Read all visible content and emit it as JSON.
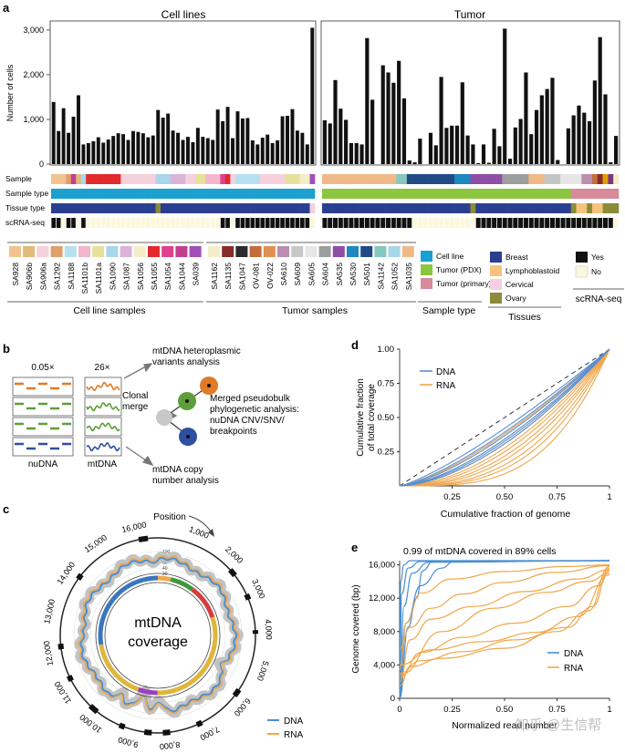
{
  "panels": {
    "a": "a",
    "b": "b",
    "c": "c",
    "d": "d",
    "e": "e"
  },
  "panel_a": {
    "cell_lines_title": "Cell lines",
    "tumor_title": "Tumor",
    "ylabel": "Number of cells",
    "yticks": [
      "0",
      "1,000",
      "2,000",
      "3,000"
    ],
    "row_labels": [
      "Sample",
      "Sample type",
      "Tissue type",
      "scRNA-seq"
    ],
    "cell_line_values": [
      1390,
      740,
      1250,
      700,
      1060,
      1540,
      440,
      470,
      510,
      600,
      480,
      550,
      630,
      690,
      670,
      540,
      740,
      720,
      690,
      600,
      640,
      1210,
      1040,
      1130,
      750,
      700,
      540,
      610,
      490,
      810,
      610,
      580,
      540,
      1220,
      960,
      1280,
      580,
      1180,
      1020,
      1030,
      530,
      440,
      590,
      660,
      470,
      530,
      1070,
      1080,
      1230,
      750,
      700,
      440,
      3050
    ],
    "tumor_values": [
      980,
      910,
      1880,
      1240,
      990,
      470,
      470,
      440,
      2820,
      1440,
      0,
      2210,
      2050,
      1820,
      2310,
      1470,
      80,
      40,
      570,
      0,
      700,
      420,
      1950,
      810,
      860,
      860,
      1830,
      640,
      440,
      20,
      440,
      30,
      790,
      400,
      3030,
      120,
      820,
      1010,
      2050,
      670,
      1210,
      1540,
      1680,
      1930,
      90,
      0,
      800,
      1090,
      1310,
      1150,
      960,
      1870,
      2840,
      1560,
      40,
      630
    ],
    "cell_line_colors": [
      "#f2c391",
      "#f2c391",
      "#f2c391",
      "#dfa06a",
      "#c2408f",
      "#e0bb7a",
      "#a8d6ea",
      "#e32a2d",
      "#e32a2d",
      "#e32a2d",
      "#e32a2d",
      "#e32a2d",
      "#e32a2d",
      "#e32a2d",
      "#f7d0dd",
      "#f7d0dd",
      "#f7d0dd",
      "#f7d0dd",
      "#f7d0dd",
      "#f7d0dd",
      "#f7d0dd",
      "#a8d6ea",
      "#a8d6ea",
      "#a8d6ea",
      "#dcb3d6",
      "#dcb3d6",
      "#dcb3d6",
      "#f7d0dd",
      "#f7d0dd",
      "#e6e09b",
      "#e6e09b",
      "#f4b6cc",
      "#f4b6cc",
      "#f4b6cc",
      "#e0408f",
      "#e32a2d",
      "#f7d0dd",
      "#b4e0f2",
      "#b4e0f2",
      "#b4e0f2",
      "#b4e0f2",
      "#b4e0f2",
      "#f7d0dd",
      "#f7d0dd",
      "#f7d0dd",
      "#f7d0dd",
      "#f7d0dd",
      "#e6e09b",
      "#e6e09b",
      "#e6e09b",
      "#f3eec8",
      "#f3eec8",
      "#a14db8"
    ],
    "tumor_colors": [
      "#f1b988",
      "#f1b988",
      "#f1b988",
      "#f1b988",
      "#f1b988",
      "#f1b988",
      "#f1b988",
      "#f1b988",
      "#f1b988",
      "#f1b988",
      "#f1b988",
      "#f1b988",
      "#f1b988",
      "#f1b988",
      "#86c7c0",
      "#86c7c0",
      "#224a86",
      "#224a86",
      "#224a86",
      "#224a86",
      "#224a86",
      "#224a86",
      "#224a86",
      "#224a86",
      "#224a86",
      "#1e88c0",
      "#1e88c0",
      "#1e88c0",
      "#8f4ea6",
      "#8f4ea6",
      "#8f4ea6",
      "#8f4ea6",
      "#8f4ea6",
      "#8f4ea6",
      "#9e9e9e",
      "#9e9e9e",
      "#9e9e9e",
      "#9e9e9e",
      "#9e9e9e",
      "#f1b988",
      "#f1b988",
      "#f1b988",
      "#c5c5c5",
      "#c5c5c5",
      "#c5c5c5",
      "#e6e6e6",
      "#e6e6e6",
      "#e6e6e6",
      "#e6e6e6",
      "#b98eae",
      "#b98eae",
      "#c26d3b",
      "#8b2a2a",
      "#e0a000",
      "#7a3a7a",
      "#f3eec8"
    ],
    "cell_line_type": {
      "color": "#1ba1cf"
    },
    "tumor_type": {
      "pdx_color": "#8cc63f",
      "primary_color": "#d68a9a",
      "pdx_count": 47
    },
    "cell_line_tissue": {
      "breast": "#2a3f8f",
      "ovary": "#8b8b3a"
    },
    "tumor_tissue": {
      "breast": "#2a3f8f",
      "lympho": "#f6c37d",
      "ovary": "#8b8b3a"
    },
    "cell_line_scrna": [
      1,
      1,
      0,
      1,
      1,
      0,
      1,
      0,
      0,
      0,
      0,
      0,
      0,
      0,
      0,
      0,
      0,
      0,
      0,
      0,
      0,
      0,
      0,
      0,
      0,
      0,
      0,
      0,
      0,
      0,
      0,
      0,
      0,
      0,
      1,
      1,
      0,
      1,
      1,
      1,
      1,
      1,
      1,
      1,
      1,
      1,
      1,
      1,
      1,
      1,
      1,
      1,
      0
    ],
    "tumor_scrna": [
      1,
      1,
      1,
      1,
      1,
      1,
      1,
      1,
      1,
      1,
      1,
      1,
      1,
      1,
      1,
      1,
      1,
      0,
      0,
      0,
      0,
      0,
      0,
      0,
      0,
      0,
      0,
      0,
      0,
      1,
      1,
      1,
      1,
      1,
      1,
      1,
      1,
      1,
      1,
      1,
      1,
      1,
      1,
      1,
      1,
      1,
      1,
      1,
      1,
      1,
      1,
      1,
      1,
      1,
      1,
      0
    ],
    "legend_cell_line_samples": {
      "labels": [
        "SA928",
        "SA906b",
        "SA906a",
        "SA1292",
        "SA1188",
        "SA1101b",
        "SA1101a",
        "SA1090",
        "SA1087",
        "SA1056",
        "SA1055",
        "SA1054",
        "SA1044",
        "SA039"
      ],
      "colors": [
        "#f2c391",
        "#e0bb7a",
        "#f7d0dd",
        "#dfa06a",
        "#b4e0f2",
        "#f4b6cc",
        "#e6e09b",
        "#a8d6ea",
        "#dcb3d6",
        "#f3eec8",
        "#e32a2d",
        "#e0408f",
        "#c2408f",
        "#a14db8"
      ],
      "title": "Cell line samples"
    },
    "legend_tumor_samples": {
      "labels": [
        "SA1162",
        "SA1135",
        "SA1047",
        "OV-081",
        "OV-022",
        "SA610",
        "SA609",
        "SA605",
        "SA604",
        "SA535",
        "SA530",
        "SA501",
        "SA1142",
        "SA1052",
        "SA1035"
      ],
      "colors": [
        "#f3eec8",
        "#8b2a2a",
        "#2b2b2b",
        "#c26d3b",
        "#e09050",
        "#b98eae",
        "#c8c8c8",
        "#e6e6e6",
        "#9e9e9e",
        "#8f4ea6",
        "#1e88c0",
        "#224a86",
        "#86c7c0",
        "#a8d6ea",
        "#f1b988"
      ],
      "title": "Tumor samples"
    },
    "legend_sample_type": {
      "labels": [
        "Cell line",
        "Tumor (PDX)",
        "Tumor (primary)"
      ],
      "colors": [
        "#1ba1cf",
        "#8cc63f",
        "#d68a9a"
      ],
      "title": "Sample type"
    },
    "legend_tissues": {
      "labels": [
        "Breast",
        "Lymphoblastoid",
        "Cervical",
        "Ovary"
      ],
      "colors": [
        "#2a3f8f",
        "#f6c37d",
        "#f7d0dd",
        "#8b8b3a"
      ],
      "title": "Tissues"
    },
    "legend_scrna": {
      "labels": [
        "Yes",
        "No"
      ],
      "colors": [
        "#111111",
        "#fbf7dc"
      ],
      "title": "scRNA-seq"
    }
  },
  "panel_b": {
    "depth_nu": "0.05×",
    "depth_mt": "26×",
    "nu_label": "nuDNA",
    "mt_label": "mtDNA",
    "clonal_merge": "Clonal\nmerge",
    "out1": "mtDNA heteroplasmic\nvariants analysis",
    "out2": "Merged pseudobulk\nphylogenetic analysis:\nnuDNA CNV/SNV/\nbreakpoints",
    "out3": "mtDNA copy\nnumber analysis"
  },
  "panel_c": {
    "title": "mtDNA\ncoverage",
    "position_label": "Position",
    "position_ticks": [
      "1,000",
      "2,000",
      "3,000",
      "4,000",
      "5,000",
      "6,000",
      "7,000",
      "8,000",
      "9,000",
      "10,000",
      "11,000",
      "12,000",
      "13,000",
      "14,000",
      "15,000",
      "16,000"
    ],
    "scale_ticks": [
      "100",
      "80",
      "60",
      "40",
      "20"
    ],
    "legend": [
      {
        "label": "DNA",
        "color": "#4a8fd0"
      },
      {
        "label": "RNA",
        "color": "#f0a64a"
      }
    ]
  },
  "chart_data": [
    {
      "type": "bar",
      "id": "a",
      "title": "Cell lines",
      "ylabel": "Number of cells",
      "ylim": [
        0,
        3100
      ],
      "note": "per-sample bars"
    },
    {
      "type": "line",
      "id": "d",
      "xlabel": "Cumulative fraction of genome",
      "ylabel": "Cumulative fraction\nof total coverage",
      "xlim": [
        0,
        1
      ],
      "ylim": [
        0,
        1
      ],
      "xticks": [
        "0.25",
        "0.50",
        "0.75",
        "1"
      ],
      "yticks": [
        "0.25",
        "0.50",
        "0.75",
        "1.00"
      ],
      "series": [
        {
          "name": "DNA",
          "color": "#5b8fd0",
          "gammas": [
            1.25,
            1.35,
            1.45,
            1.55,
            1.62,
            1.7
          ]
        },
        {
          "name": "RNA",
          "color": "#f0a64a",
          "gammas": [
            1.4,
            1.55,
            1.7,
            1.85,
            2.0,
            2.2,
            2.4,
            2.7,
            3.0,
            3.5
          ]
        }
      ],
      "legend": [
        "DNA",
        "RNA"
      ]
    },
    {
      "type": "line",
      "id": "e",
      "title": "0.99 of mtDNA covered in 89% cells",
      "xlabel": "Normalized read number",
      "ylabel": "Genome covered (bp)",
      "xlim": [
        0,
        1
      ],
      "ylim": [
        0,
        16500
      ],
      "xticks": [
        "0",
        "0.25",
        "0.50",
        "0.75",
        "1"
      ],
      "yticks": [
        "0",
        "4,000",
        "8,000",
        "12,000",
        "16,000"
      ],
      "series": [
        {
          "name": "DNA",
          "color": "#4a8fd0",
          "curves": [
            [
              [
                0,
                0
              ],
              [
                0.005,
                14000
              ],
              [
                0.02,
                16000
              ],
              [
                0.05,
                16500
              ],
              [
                1,
                16500
              ]
            ],
            [
              [
                0,
                0
              ],
              [
                0.01,
                12500
              ],
              [
                0.04,
                15600
              ],
              [
                0.1,
                16400
              ],
              [
                1,
                16500
              ]
            ],
            [
              [
                0,
                0
              ],
              [
                0.02,
                11000
              ],
              [
                0.06,
                15000
              ],
              [
                0.14,
                16300
              ],
              [
                1,
                16500
              ]
            ],
            [
              [
                0,
                0
              ],
              [
                0.03,
                9000
              ],
              [
                0.1,
                13500
              ],
              [
                0.2,
                15600
              ],
              [
                0.26,
                16450
              ],
              [
                1,
                16500
              ]
            ],
            [
              [
                0,
                0
              ],
              [
                0.04,
                8500
              ],
              [
                0.08,
                12000
              ],
              [
                0.11,
                15300
              ],
              [
                0.16,
                16450
              ],
              [
                1,
                16500
              ]
            ]
          ]
        },
        {
          "name": "RNA",
          "color": "#f0a64a",
          "curves": [
            [
              [
                0,
                2000
              ],
              [
                0.05,
                7000
              ],
              [
                0.15,
                9500
              ],
              [
                0.35,
                11000
              ],
              [
                0.6,
                12800
              ],
              [
                0.85,
                14300
              ],
              [
                1,
                15400
              ]
            ],
            [
              [
                0,
                2500
              ],
              [
                0.1,
                5500
              ],
              [
                0.3,
                7300
              ],
              [
                0.55,
                9000
              ],
              [
                0.8,
                11000
              ],
              [
                0.95,
                13500
              ],
              [
                1,
                15300
              ]
            ],
            [
              [
                0,
                3000
              ],
              [
                0.1,
                4500
              ],
              [
                0.3,
                5600
              ],
              [
                0.55,
                7000
              ],
              [
                0.8,
                8500
              ],
              [
                0.92,
                11000
              ],
              [
                1,
                15600
              ]
            ],
            [
              [
                0,
                1500
              ],
              [
                0.05,
                3800
              ],
              [
                0.2,
                4800
              ],
              [
                0.5,
                6000
              ],
              [
                0.75,
                8000
              ],
              [
                0.9,
                10500
              ],
              [
                1,
                15800
              ]
            ],
            [
              [
                0,
                6000
              ],
              [
                0.05,
                8500
              ],
              [
                0.15,
                10800
              ],
              [
                0.3,
                12500
              ],
              [
                0.5,
                13900
              ],
              [
                0.75,
                15100
              ],
              [
                1,
                15900
              ]
            ],
            [
              [
                0,
                3500
              ],
              [
                0.03,
                9000
              ],
              [
                0.1,
                12600
              ],
              [
                0.25,
                14300
              ],
              [
                0.5,
                15200
              ],
              [
                0.8,
                15800
              ],
              [
                1,
                16000
              ]
            ],
            [
              [
                0,
                4000
              ],
              [
                0.15,
                5800
              ],
              [
                0.4,
                6800
              ],
              [
                0.65,
                7900
              ],
              [
                0.85,
                9800
              ],
              [
                1,
                14800
              ]
            ],
            [
              [
                0,
                2800
              ],
              [
                0.2,
                8000
              ],
              [
                0.45,
                10800
              ],
              [
                0.7,
                12700
              ],
              [
                0.9,
                14000
              ],
              [
                1,
                15000
              ]
            ]
          ]
        }
      ],
      "legend": [
        "DNA",
        "RNA"
      ]
    }
  ],
  "watermark": "知乎 @生信帮"
}
